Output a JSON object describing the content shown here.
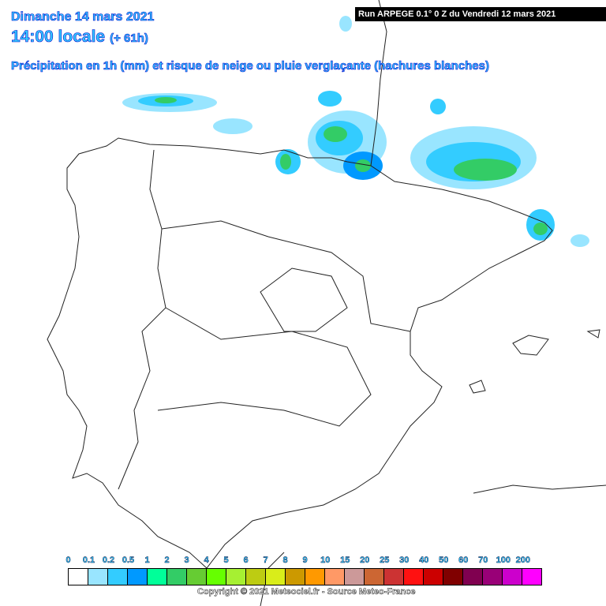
{
  "header": {
    "date": "Dimanche 14 mars 2021",
    "time": "14:00 locale",
    "lead": "(+ 61h)",
    "subtitle": "Précipitation en 1h (mm) et risque de neige ou pluie verglaçante (hachures blanches)",
    "run": "Run ARPEGE 0.1° 0 Z du Vendredi 12 mars 2021"
  },
  "legend": {
    "labels": [
      "0",
      "0.1",
      "0.2",
      "0.5",
      "1",
      "2",
      "3",
      "4",
      "5",
      "6",
      "7",
      "8",
      "9",
      "10",
      "15",
      "20",
      "25",
      "30",
      "40",
      "50",
      "60",
      "70",
      "100",
      "200"
    ],
    "colors": [
      "#ffffff",
      "#99e5ff",
      "#33ccff",
      "#0099ff",
      "#00ff99",
      "#33cc66",
      "#66cc33",
      "#66ff00",
      "#a6f032",
      "#bdcc12",
      "#d9ed1a",
      "#cc9900",
      "#ff9900",
      "#ff9966",
      "#cc9999",
      "#cc6633",
      "#cc3333",
      "#ff1111",
      "#cc0000",
      "#800000",
      "#800050",
      "#990077",
      "#cc00cc",
      "#ff00ff"
    ]
  },
  "copyright": "Copyright © 2021 Meteociel.fr - Source Meteo-France"
}
